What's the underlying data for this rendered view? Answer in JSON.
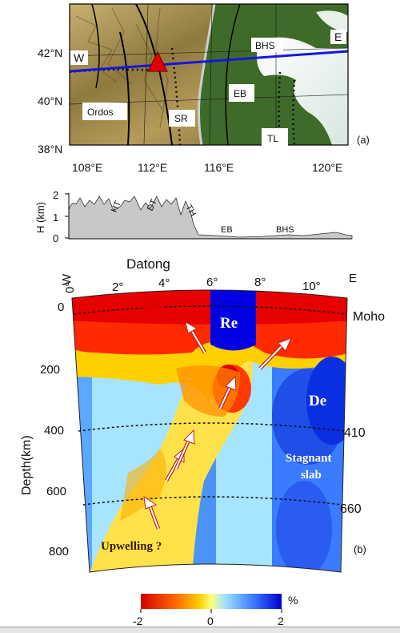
{
  "panel_a": {
    "label": "(a)",
    "lat_labels": [
      "42°N",
      "40°N",
      "38°N"
    ],
    "lon_labels": [
      "108°E",
      "112°E",
      "116°E",
      "120°E"
    ],
    "region_labels": {
      "w": "W",
      "e": "E",
      "bhs": "BHS",
      "eb": "EB",
      "ordos": "Ordos",
      "sr": "SR",
      "tl": "TL"
    }
  },
  "elevation_profile": {
    "ylabel": "H (km)",
    "y_ticks": [
      "2",
      "1",
      "0"
    ],
    "labels": [
      "HT",
      "DT",
      "TH",
      "EB",
      "BHS"
    ]
  },
  "panel_b": {
    "label": "(b)",
    "station": "Datong",
    "w": "W",
    "e": "E",
    "x_ticks": [
      "0°",
      "2°",
      "4°",
      "6°",
      "8°",
      "10°"
    ],
    "ylabel": "Depth(km)",
    "depth_ticks": [
      "0",
      "200",
      "400",
      "600",
      "800"
    ],
    "boundaries": [
      "Moho",
      "410",
      "660"
    ],
    "annotations": {
      "re": "Re",
      "de": "De",
      "stagnant_1": "Stagnant",
      "stagnant_2": "slab",
      "upwelling": "Upwelling ?"
    }
  },
  "colorbar": {
    "ticks": [
      "-2",
      "0",
      "2"
    ],
    "unit": "%",
    "colors": [
      "#d40000",
      "#ff6a00",
      "#ffd000",
      "#ffff80",
      "#9fe0ff",
      "#3a7bff",
      "#0000cc"
    ]
  }
}
